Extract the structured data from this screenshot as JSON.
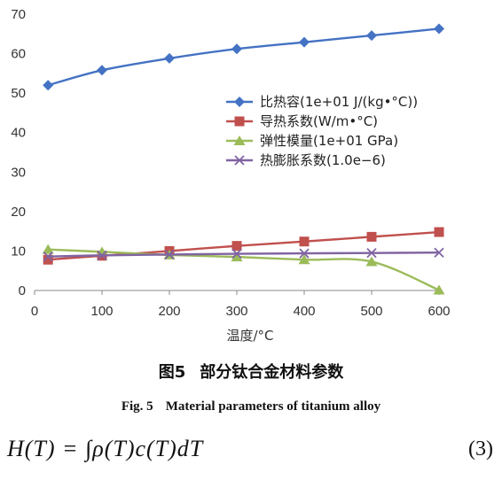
{
  "chart_data": {
    "type": "line",
    "x": [
      20,
      100,
      200,
      300,
      400,
      500,
      600
    ],
    "xlabel": "温度/°C",
    "ylabel": "",
    "xlim": [
      0,
      600
    ],
    "ylim": [
      0,
      70
    ],
    "xticks": [
      0,
      100,
      200,
      300,
      400,
      500,
      600
    ],
    "yticks": [
      0,
      10,
      20,
      30,
      40,
      50,
      60,
      70
    ],
    "grid": false,
    "legend_position": "center-right",
    "series": [
      {
        "name": "比热容(1e+01 J/(kg•°C))",
        "color": "#4472C4",
        "marker": "diamond",
        "values": [
          52.0,
          55.8,
          58.8,
          61.2,
          62.9,
          64.6,
          66.3
        ]
      },
      {
        "name": "导热系数(W/m•°C)",
        "color": "#C0504D",
        "marker": "square",
        "values": [
          7.8,
          8.8,
          10.0,
          11.3,
          12.4,
          13.6,
          14.8
        ]
      },
      {
        "name": "弹性模量(1e+01 GPa)",
        "color": "#9BBB59",
        "marker": "triangle",
        "values": [
          10.4,
          9.8,
          9.0,
          8.5,
          7.8,
          7.3,
          0.1
        ]
      },
      {
        "name": "热膨胀系数(1.0e−6)",
        "color": "#8064A2",
        "marker": "x",
        "values": [
          8.6,
          8.9,
          9.1,
          9.3,
          9.4,
          9.5,
          9.6
        ]
      }
    ]
  },
  "caption": {
    "zh_fig": "图5",
    "zh_title": "部分钛合金材料参数",
    "en_fig": "Fig. 5",
    "en_title": "Material parameters of titanium alloy"
  },
  "equation": {
    "text": "H(T) = ∫ρ(T)c(T)dT",
    "number": "(3)"
  }
}
